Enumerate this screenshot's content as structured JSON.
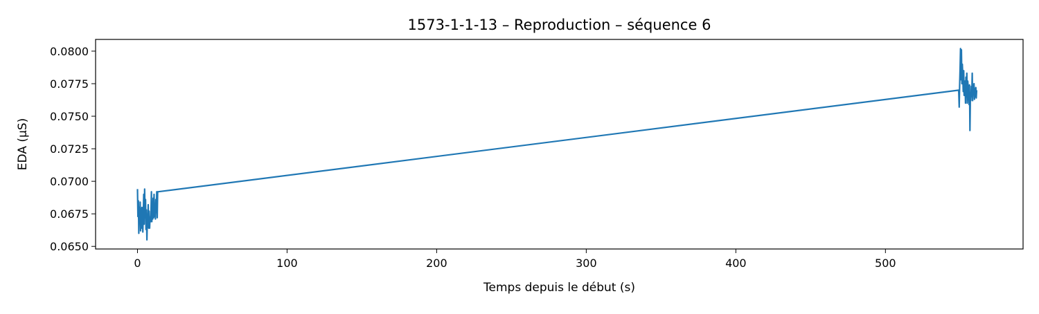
{
  "chart_data": {
    "type": "line",
    "title": "1573-1-1-13 – Reproduction – séquence 6",
    "xlabel": "Temps depuis le début (s)",
    "ylabel": "EDA (µS)",
    "xlim": [
      -28,
      592
    ],
    "ylim": [
      0.0648,
      0.0809
    ],
    "xticks": [
      0,
      100,
      200,
      300,
      400,
      500
    ],
    "xtick_labels": [
      "0",
      "100",
      "200",
      "300",
      "400",
      "500"
    ],
    "yticks": [
      0.065,
      0.0675,
      0.07,
      0.0725,
      0.075,
      0.0775,
      0.08
    ],
    "ytick_labels": [
      "0.0650",
      "0.0675",
      "0.0700",
      "0.0725",
      "0.0750",
      "0.0775",
      "0.0800"
    ],
    "grid": false,
    "series": [
      {
        "color": "#1f77b4",
        "x": [
          0,
          0.3,
          0.6,
          0.9,
          1.2,
          1.5,
          1.8,
          2.1,
          2.4,
          2.7,
          3.0,
          3.3,
          3.6,
          3.9,
          4.2,
          4.5,
          4.8,
          5.1,
          5.4,
          5.7,
          6.0,
          6.3,
          6.6,
          6.9,
          7.2,
          7.5,
          7.8,
          8.1,
          8.4,
          8.7,
          9.0,
          9.3,
          9.6,
          9.9,
          10.2,
          10.5,
          10.8,
          11.1,
          11.4,
          11.7,
          12.0,
          12.3,
          12.6,
          12.9,
          13.2,
          13.5,
          14.0,
          549.0,
          549.3,
          549.6,
          549.9,
          550.2,
          550.5,
          550.8,
          551.1,
          551.4,
          551.7,
          552.0,
          552.3,
          552.6,
          552.9,
          553.2,
          553.5,
          553.8,
          554.1,
          554.4,
          554.7,
          555.0,
          555.3,
          555.6,
          555.9,
          556.2,
          556.5,
          556.8,
          557.1,
          557.4,
          557.7,
          558.0,
          558.3,
          558.6,
          558.9,
          559.2,
          559.5,
          559.8,
          560.1,
          560.4,
          560.7,
          561.0
        ],
        "y": [
          0.0694,
          0.0673,
          0.0685,
          0.066,
          0.068,
          0.0668,
          0.0684,
          0.0662,
          0.0679,
          0.0664,
          0.068,
          0.0672,
          0.0661,
          0.0676,
          0.069,
          0.0667,
          0.0694,
          0.0672,
          0.0686,
          0.0663,
          0.0678,
          0.0655,
          0.0671,
          0.0668,
          0.0682,
          0.0664,
          0.0677,
          0.0664,
          0.0672,
          0.0669,
          0.0674,
          0.0692,
          0.0669,
          0.0684,
          0.0671,
          0.0687,
          0.0672,
          0.069,
          0.0673,
          0.0682,
          0.0671,
          0.0686,
          0.0676,
          0.0692,
          0.0672,
          0.0692,
          0.0692,
          0.077,
          0.0757,
          0.0773,
          0.0787,
          0.0802,
          0.0778,
          0.0801,
          0.0775,
          0.079,
          0.0781,
          0.0769,
          0.0785,
          0.0766,
          0.0773,
          0.0777,
          0.076,
          0.078,
          0.0765,
          0.0783,
          0.076,
          0.0777,
          0.0773,
          0.0766,
          0.0759,
          0.0774,
          0.0739,
          0.0768,
          0.0762,
          0.0773,
          0.0765,
          0.0783,
          0.0762,
          0.0774,
          0.0768,
          0.0775,
          0.0763,
          0.0771,
          0.0765,
          0.0772,
          0.0764,
          0.077
        ]
      }
    ]
  }
}
